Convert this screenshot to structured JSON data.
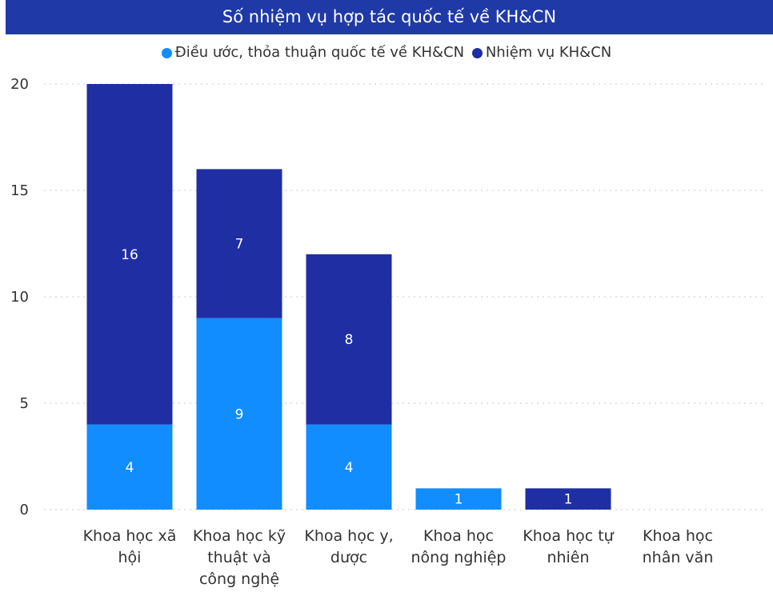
{
  "chart_data": {
    "type": "bar",
    "stacked": true,
    "title": "Số nhiệm vụ hợp tác quốc tế về KH&CN",
    "categories": [
      [
        "Khoa học xã",
        "hội"
      ],
      [
        "Khoa học kỹ",
        "thuật và",
        "công nghệ"
      ],
      [
        "Khoa học y,",
        "dược"
      ],
      [
        "Khoa học",
        "nông nghiệp"
      ],
      [
        "Khoa học tự",
        "nhiên"
      ],
      [
        "Khoa học",
        "nhân văn"
      ]
    ],
    "series": [
      {
        "name": "Điều ước, thỏa thuận quốc tế về KH&CN",
        "color": "#118dff",
        "values": [
          4,
          9,
          4,
          1,
          0,
          0
        ]
      },
      {
        "name": "Nhiệm vụ KH&CN",
        "color": "#1f2ea3",
        "values": [
          16,
          7,
          8,
          0,
          1,
          0
        ]
      }
    ],
    "ylim": [
      0,
      20
    ],
    "yticks": [
      "0",
      "5",
      "10",
      "15",
      "20"
    ],
    "grid": true,
    "legend_position": "top-center",
    "xlabel": "",
    "ylabel": ""
  }
}
